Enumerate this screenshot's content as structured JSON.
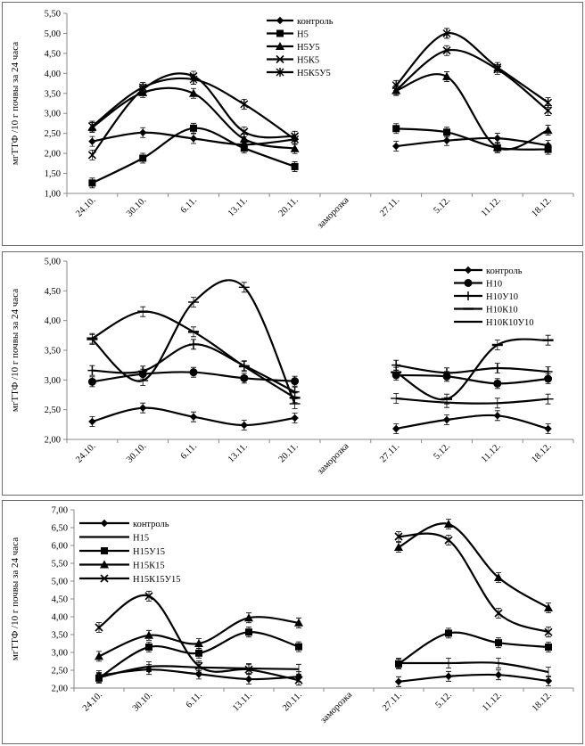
{
  "chart_data": [
    {
      "type": "line",
      "ylabel": "мгТТФ /10 г почвы за 24 часа",
      "ylim": [
        1.0,
        5.5
      ],
      "yticks": [
        "1,00",
        "1,50",
        "2,00",
        "2,50",
        "3,00",
        "3,50",
        "4,00",
        "4,50",
        "5,00",
        "5,50"
      ],
      "categories": [
        "24.10.",
        "30.10.",
        "6.11.",
        "13.11.",
        "20.11.",
        "заморозка",
        "27.11.",
        "5.12.",
        "11.12.",
        "18.12."
      ],
      "series": [
        {
          "name": "контроль",
          "marker": "diamond",
          "values": [
            2.3,
            2.52,
            2.37,
            2.22,
            2.35,
            null,
            2.18,
            2.32,
            2.38,
            2.2
          ]
        },
        {
          "name": "Н5",
          "marker": "square",
          "values": [
            1.26,
            1.88,
            2.63,
            2.13,
            1.67,
            null,
            2.62,
            2.53,
            2.14,
            2.1
          ]
        },
        {
          "name": "Н5У5",
          "marker": "triangle",
          "values": [
            2.65,
            3.52,
            3.5,
            2.36,
            2.12,
            null,
            3.57,
            3.92,
            2.15,
            2.58
          ]
        },
        {
          "name": "Н5К5",
          "marker": "x",
          "values": [
            1.96,
            3.6,
            3.93,
            2.54,
            2.43,
            null,
            3.58,
            4.57,
            4.1,
            3.07
          ]
        },
        {
          "name": "Н5К5У5",
          "marker": "star",
          "values": [
            2.68,
            3.65,
            3.85,
            3.23,
            2.35,
            null,
            3.7,
            5.0,
            4.15,
            3.27
          ]
        }
      ]
    },
    {
      "type": "line",
      "ylabel": "мгТТФ /10 г почвы за 24 часа",
      "ylim": [
        2.0,
        5.0
      ],
      "yticks": [
        "2,00",
        "2,50",
        "3,00",
        "3,50",
        "4,00",
        "4,50",
        "5,00"
      ],
      "categories": [
        "24.10.",
        "30.10.",
        "6.11.",
        "13.11.",
        "20.11.",
        "заморозка",
        "27.11.",
        "5.12.",
        "11.12.",
        "18.12."
      ],
      "series": [
        {
          "name": "контроль",
          "marker": "diamond",
          "values": [
            2.3,
            2.53,
            2.38,
            2.24,
            2.36,
            null,
            2.18,
            2.33,
            2.4,
            2.18
          ]
        },
        {
          "name": "Н10",
          "marker": "circle",
          "values": [
            2.97,
            3.1,
            3.13,
            3.03,
            2.98,
            null,
            3.08,
            3.06,
            2.94,
            3.02
          ]
        },
        {
          "name": "Н10У10",
          "marker": "plus",
          "values": [
            3.16,
            3.15,
            3.6,
            3.24,
            2.8,
            null,
            3.25,
            3.12,
            3.2,
            3.14
          ]
        },
        {
          "name": "Н10К10",
          "marker": "dash",
          "values": [
            3.7,
            4.15,
            3.81,
            3.23,
            2.7,
            null,
            3.13,
            2.68,
            3.59,
            3.67
          ]
        },
        {
          "name": "Н10К10У10",
          "marker": "bar",
          "values": [
            3.68,
            2.99,
            4.31,
            4.56,
            2.6,
            null,
            2.69,
            2.62,
            2.61,
            2.68
          ]
        }
      ]
    },
    {
      "type": "line",
      "ylabel": "мгТТФ /10 г почвы за 24 часа",
      "ylim": [
        2.0,
        7.0
      ],
      "yticks": [
        "2,00",
        "2,50",
        "3,00",
        "3,50",
        "4,00",
        "4,50",
        "5,00",
        "5,50",
        "6,00",
        "6,50",
        "7,00"
      ],
      "categories": [
        "24.10.",
        "30.10.",
        "6.11.",
        "13.11.",
        "20.11.",
        "заморозка",
        "27.11.",
        "5.12.",
        "11.12.",
        "18.12."
      ],
      "series": [
        {
          "name": "контроль",
          "marker": "diamond",
          "values": [
            2.35,
            2.52,
            2.39,
            2.25,
            2.32,
            null,
            2.18,
            2.33,
            2.37,
            2.2
          ]
        },
        {
          "name": "Н15",
          "marker": "none",
          "values": [
            2.3,
            2.6,
            2.58,
            2.55,
            2.53,
            null,
            2.7,
            2.7,
            2.7,
            2.45
          ]
        },
        {
          "name": "Н15У15",
          "marker": "square",
          "values": [
            2.28,
            3.15,
            2.98,
            3.57,
            3.16,
            null,
            2.68,
            3.54,
            3.27,
            3.15
          ]
        },
        {
          "name": "Н15К15",
          "marker": "triangle",
          "values": [
            2.89,
            3.48,
            3.25,
            3.97,
            3.83,
            null,
            5.95,
            6.6,
            5.1,
            4.25
          ]
        },
        {
          "name": "Н15К15У15",
          "marker": "x",
          "values": [
            3.7,
            4.58,
            2.62,
            2.52,
            2.22,
            null,
            6.25,
            6.15,
            4.1,
            3.57
          ]
        }
      ]
    }
  ]
}
